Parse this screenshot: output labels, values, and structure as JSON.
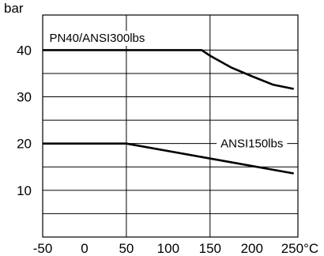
{
  "chart_data": {
    "type": "line",
    "y_unit": "bar",
    "x_unit": "°C",
    "xlim": [
      -50,
      255
    ],
    "ylim": [
      0,
      47.5
    ],
    "x_ticks": [
      -50,
      0,
      50,
      100,
      150,
      200,
      250
    ],
    "x_tick_labels": [
      "-50",
      "0",
      "50",
      "100",
      "150",
      "200",
      "250°C"
    ],
    "y_ticks": [
      10,
      20,
      30,
      40
    ],
    "y_tick_labels": [
      "10",
      "20",
      "30",
      "40"
    ],
    "grid_y": [
      5,
      10,
      15,
      20,
      25,
      30,
      35,
      40
    ],
    "grid_x": [
      50,
      150
    ],
    "series": [
      {
        "name": "PN40/ANSI300lbs",
        "points": [
          [
            -50,
            40
          ],
          [
            140,
            40
          ],
          [
            150,
            38.8
          ],
          [
            175,
            36.3
          ],
          [
            200,
            34.4
          ],
          [
            225,
            32.6
          ],
          [
            250,
            31.7
          ]
        ]
      },
      {
        "name": "ANSI150lbs",
        "points": [
          [
            -50,
            20
          ],
          [
            50,
            20
          ],
          [
            250,
            13.6
          ]
        ]
      }
    ]
  }
}
